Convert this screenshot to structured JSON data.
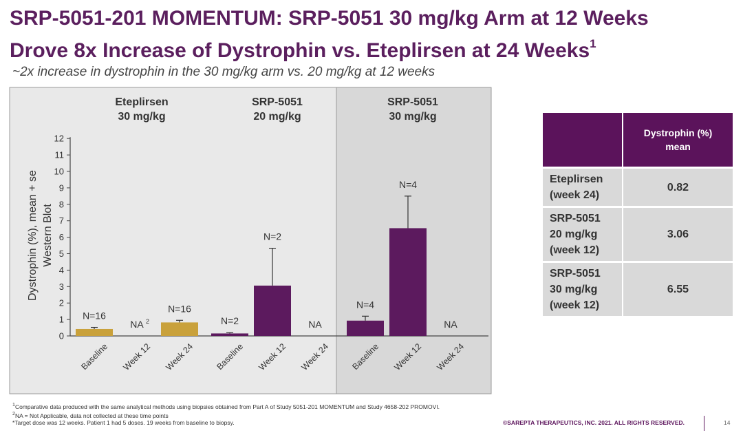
{
  "header": {
    "title_line1": "SRP-5051-201 MOMENTUM: SRP-5051 30 mg/kg Arm at 12 Weeks",
    "title_line2": "Drove 8x Increase of Dystrophin vs. Eteplirsen at 24 Weeks",
    "title_sup": "1",
    "subtitle": "~2x increase in dystrophin in the 30 mg/kg arm vs. 20 mg/kg at 12 weeks"
  },
  "chart_data": {
    "type": "bar",
    "ylabel_lines": [
      "Dystrophin (%), mean + se",
      "Western Blot"
    ],
    "ylim": [
      0,
      12
    ],
    "yticks": [
      0,
      1,
      2,
      3,
      4,
      5,
      6,
      7,
      8,
      9,
      10,
      11,
      12
    ],
    "grid": false,
    "colors": {
      "eteplirsen": "#c9a13b",
      "srp": "#5c1a5e",
      "highlight_bg": "#d8d8d8",
      "panel_bg": "#e9e9e9"
    },
    "groups": [
      {
        "name_line1": "Eteplirsen",
        "name_line2": "30 mg/kg",
        "highlight": false,
        "bars": [
          {
            "category": "Baseline",
            "value": 0.42,
            "error": 0.1,
            "label": "N=16",
            "color": "eteplirsen"
          },
          {
            "category": "Week 12",
            "value": null,
            "label": "NA",
            "label_sup": "2"
          },
          {
            "category": "Week 24",
            "value": 0.82,
            "error": 0.13,
            "label": "N=16",
            "color": "eteplirsen"
          }
        ]
      },
      {
        "name_line1": "SRP-5051",
        "name_line2": "20 mg/kg",
        "highlight": false,
        "bars": [
          {
            "category": "Baseline",
            "value": 0.15,
            "error": 0.05,
            "label": "N=2",
            "color": "srp"
          },
          {
            "category": "Week 12",
            "value": 3.06,
            "error": 2.27,
            "label": "N=2",
            "color": "srp"
          },
          {
            "category": "Week 24",
            "value": null,
            "label": "NA"
          }
        ]
      },
      {
        "name_line1": "SRP-5051",
        "name_line2": "30 mg/kg",
        "highlight": true,
        "bars": [
          {
            "category": "Baseline",
            "value": 0.93,
            "error": 0.27,
            "label": "N=4",
            "color": "srp"
          },
          {
            "category": "Week 12",
            "value": 6.55,
            "error": 1.95,
            "label": "N=4",
            "color": "srp"
          },
          {
            "category": "Week 24",
            "value": null,
            "label": "NA"
          }
        ]
      }
    ]
  },
  "table": {
    "header_line1": "Dystrophin (%)",
    "header_line2": "mean",
    "rows": [
      {
        "label_lines": [
          "Eteplirsen",
          "(week 24)"
        ],
        "value": "0.82"
      },
      {
        "label_lines": [
          "SRP-5051",
          "20 mg/kg",
          "(week 12)"
        ],
        "value": "3.06"
      },
      {
        "label_lines": [
          "SRP-5051",
          "30 mg/kg",
          "(week 12)"
        ],
        "value": "6.55"
      }
    ]
  },
  "footnotes": {
    "note1_sup": "1",
    "note1": "Comparative data produced with the same analytical methods using biopsies obtained from Part A of Study 5051-201 MOMENTUM and Study 4658-202 PROMOVI.",
    "note2_sup": "2",
    "note2": "NA = Not Applicable, data not collected at these time points",
    "note3": "*Target dose was 12 weeks. Patient 1 had 5 doses. 19 weeks from baseline to biopsy."
  },
  "footer": {
    "copyright": "©SAREPTA THERAPEUTICS, INC. 2021.  ALL RIGHTS RESERVED.",
    "page": "14"
  }
}
